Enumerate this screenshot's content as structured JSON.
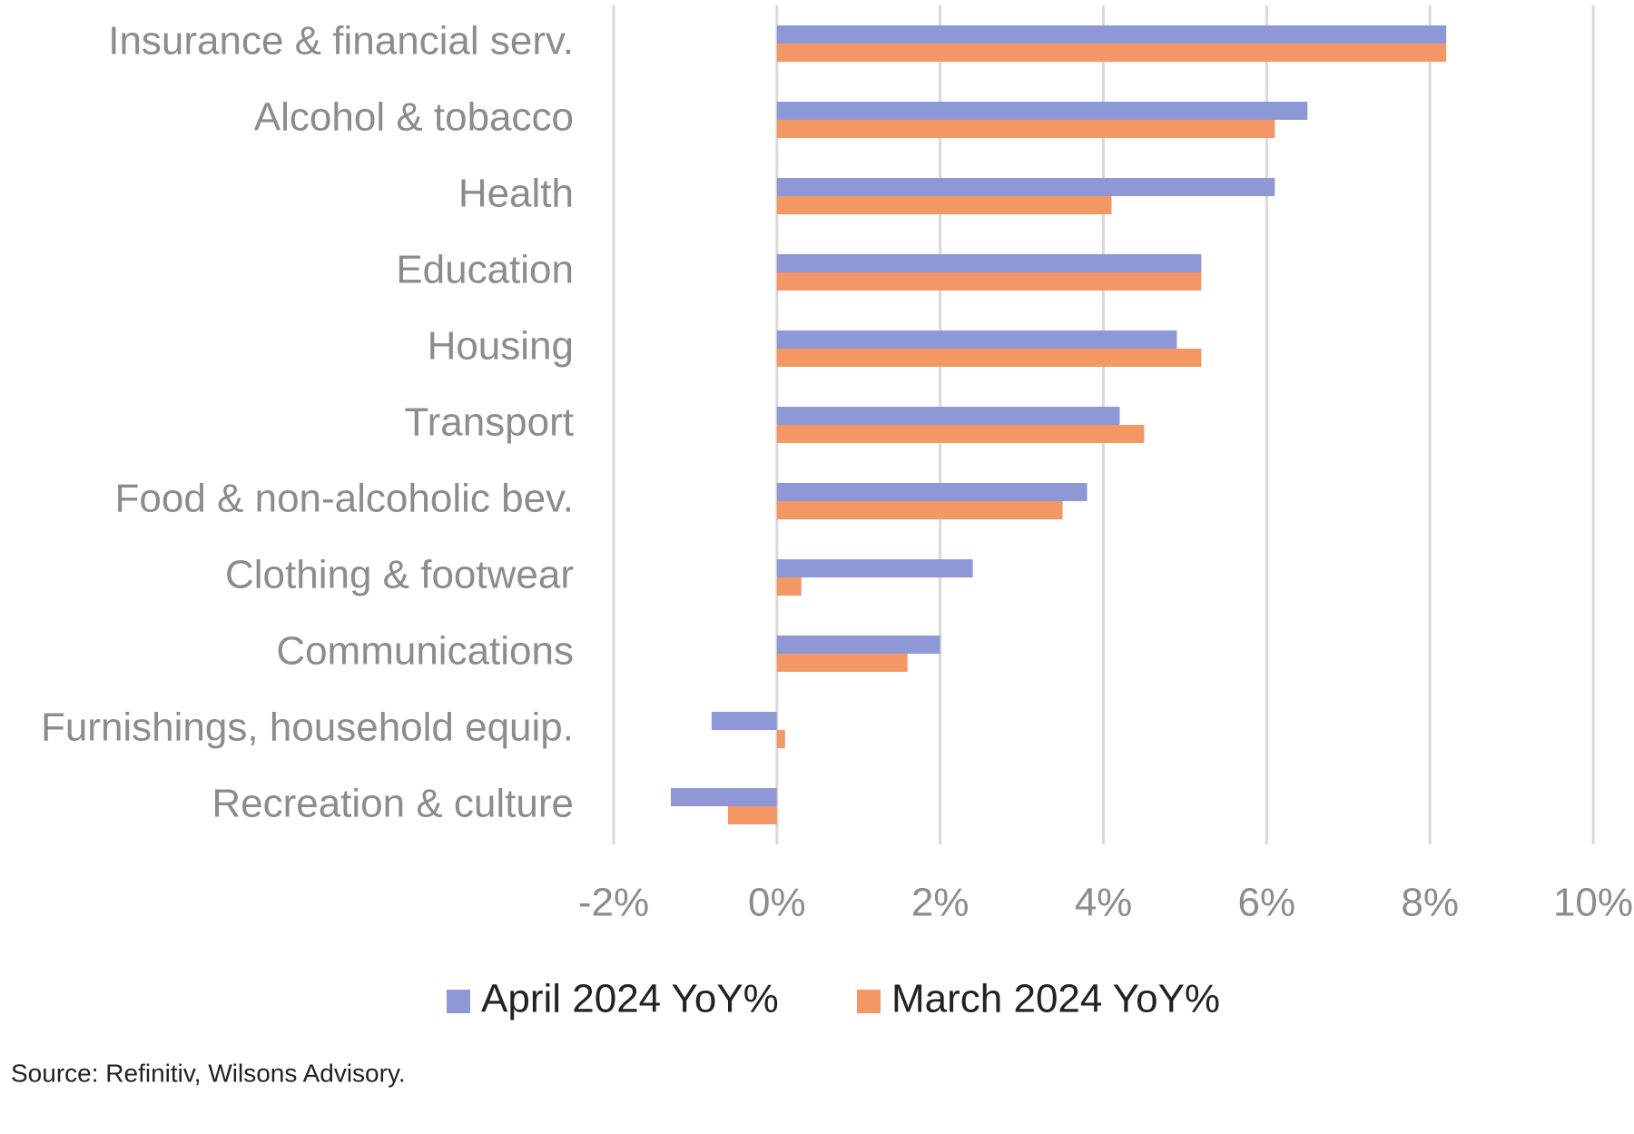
{
  "chart_data": {
    "type": "hbar",
    "categories": [
      "Insurance & financial serv.",
      "Alcohol & tobacco",
      "Health",
      "Education",
      "Housing",
      "Transport",
      "Food & non-alcoholic bev.",
      "Clothing & footwear",
      "Communications",
      "Furnishings, household equip.",
      "Recreation & culture"
    ],
    "series": [
      {
        "name": "April 2024 YoY%",
        "color": "#8f98d6",
        "values": [
          8.2,
          6.5,
          6.1,
          5.2,
          4.9,
          4.2,
          3.8,
          2.4,
          2.0,
          -0.8,
          -1.3
        ]
      },
      {
        "name": "March 2024 YoY%",
        "color": "#f39765",
        "values": [
          8.2,
          6.1,
          4.1,
          5.2,
          5.2,
          4.5,
          3.5,
          0.3,
          1.6,
          0.1,
          -0.6
        ]
      }
    ],
    "xlim": [
      -2,
      10
    ],
    "xticks": [
      {
        "value": -2,
        "label": "-2%"
      },
      {
        "value": 0,
        "label": "0%"
      },
      {
        "value": 2,
        "label": "2%"
      },
      {
        "value": 4,
        "label": "4%"
      },
      {
        "value": 6,
        "label": "6%"
      },
      {
        "value": 8,
        "label": "8%"
      },
      {
        "value": 10,
        "label": "10%"
      }
    ],
    "grid": true,
    "legend": "bottom",
    "source": "Source: Refinitiv, Wilsons Advisory."
  }
}
